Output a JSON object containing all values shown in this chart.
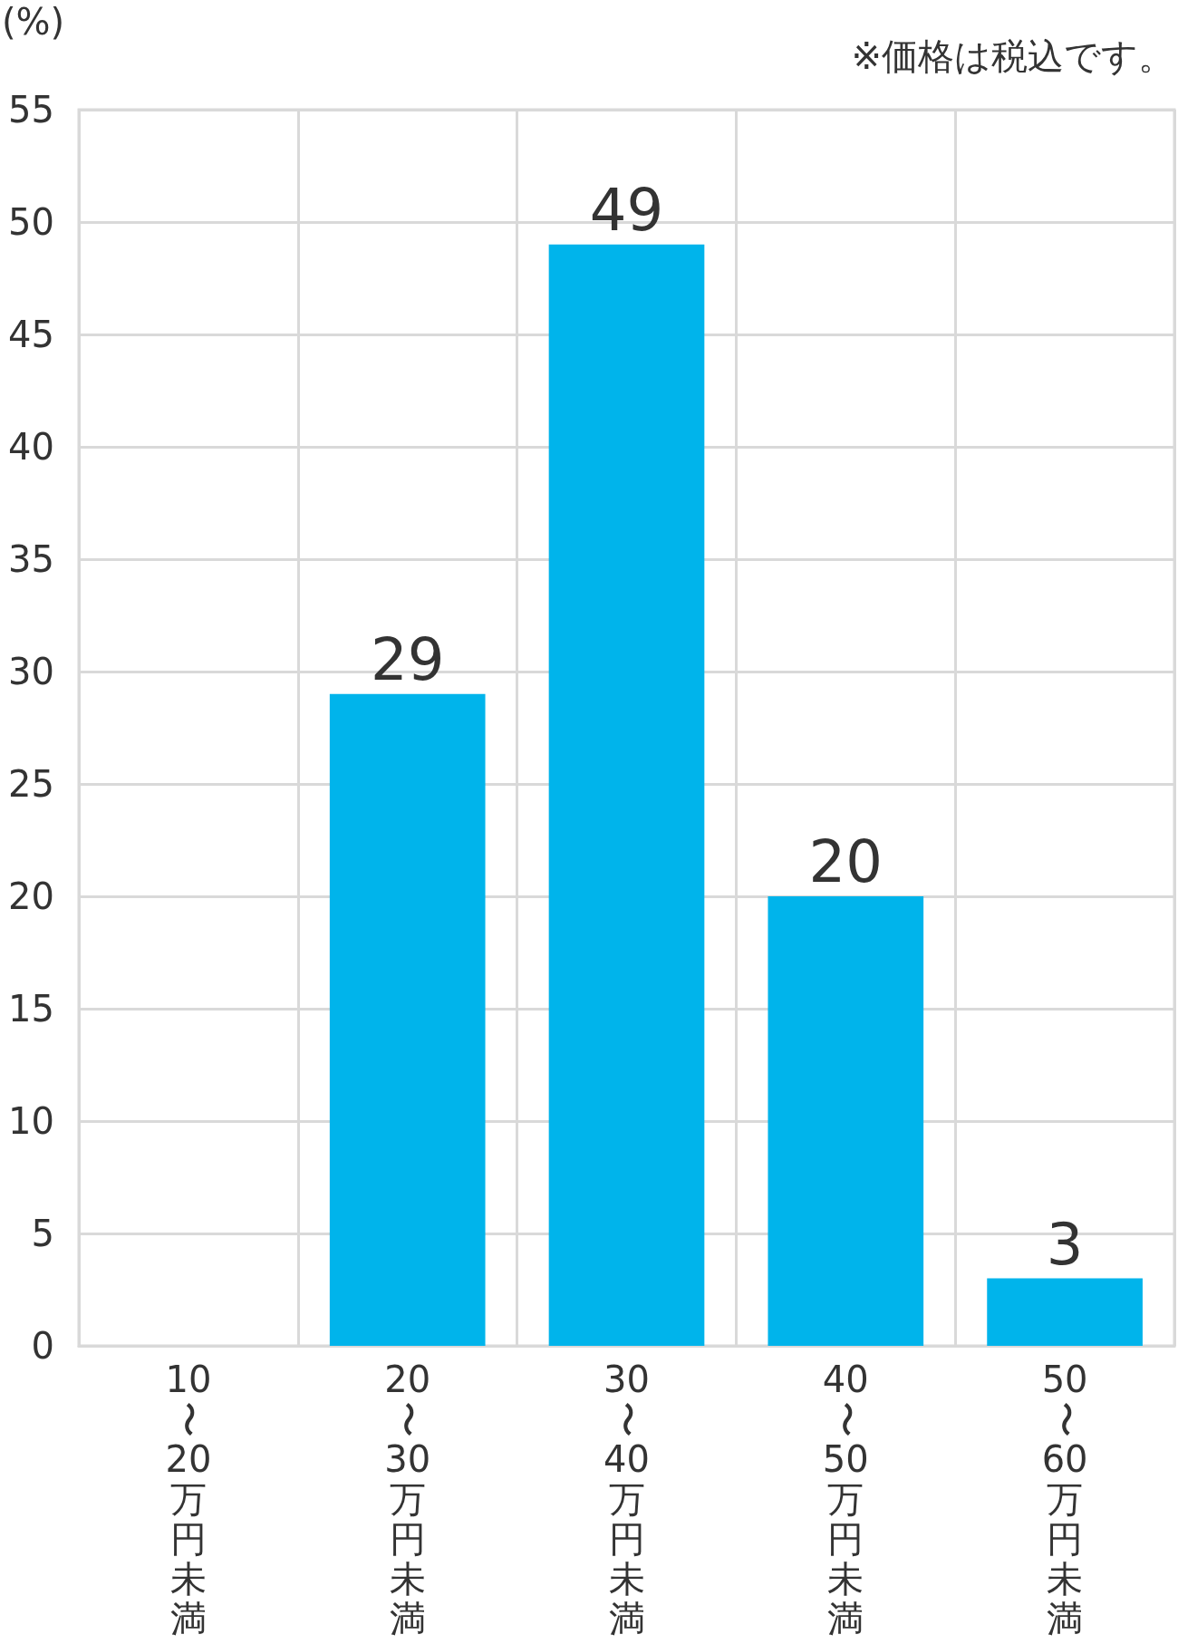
{
  "chart_data": {
    "type": "bar",
    "ylabel": "(%)",
    "annotations": [
      "※価格は税込です。"
    ],
    "categories": [
      "10〜20万円未満",
      "20〜30万円未満",
      "30〜40万円未満",
      "40〜50万円未満",
      "50〜60万円未満"
    ],
    "values": [
      0,
      29,
      49,
      20,
      3
    ],
    "color": "#00b4eb",
    "value_labels": [
      null,
      "29",
      "49",
      "20",
      "3"
    ],
    "ylim": [
      0,
      55
    ],
    "yticks": [
      0,
      5,
      10,
      15,
      20,
      25,
      30,
      35,
      40,
      45,
      50,
      55
    ],
    "grid": true
  }
}
